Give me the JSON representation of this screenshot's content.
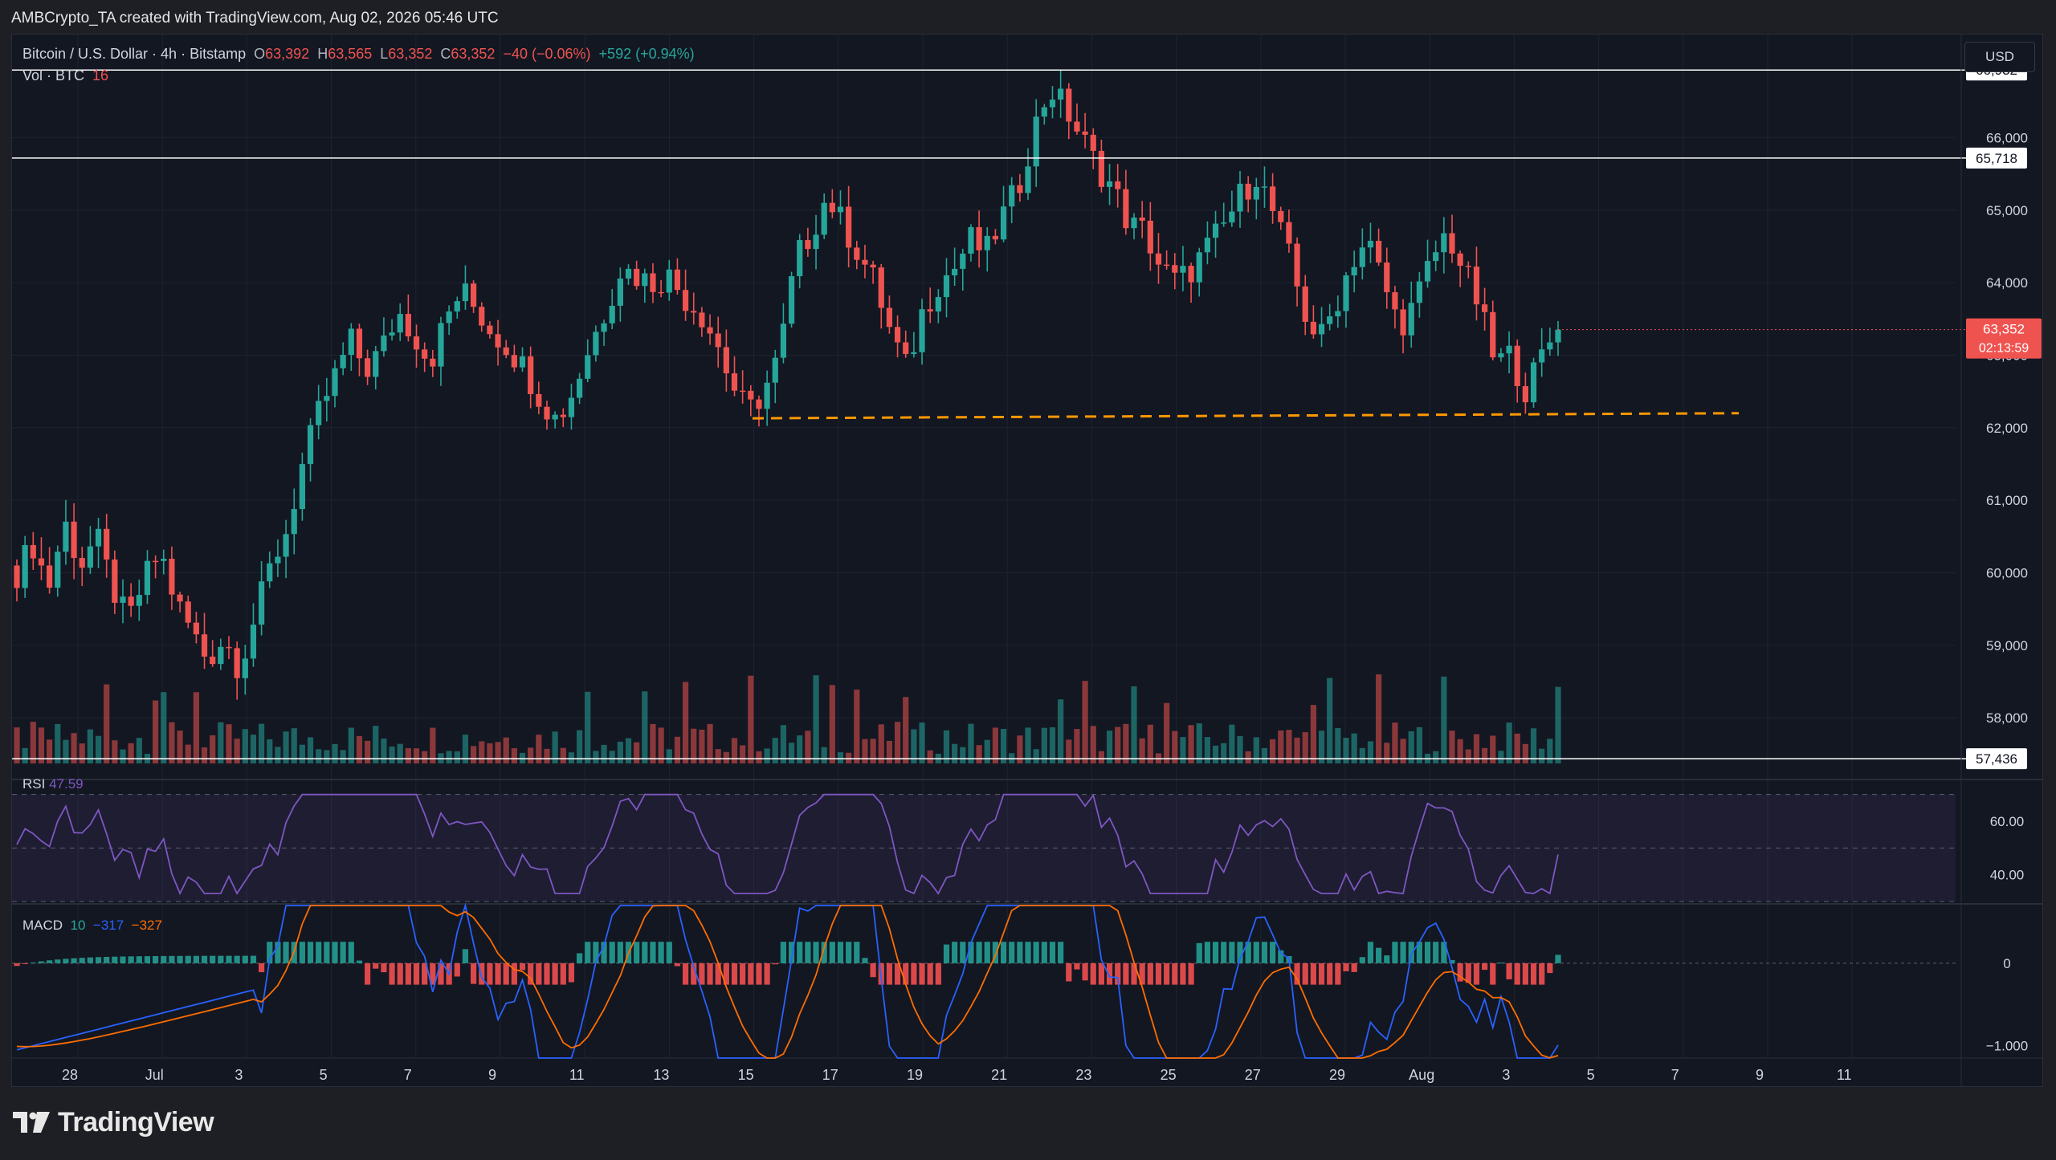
{
  "header": {
    "credit": "AMBCrypto_TA created with TradingView.com, Aug 02, 2026 05:46 UTC"
  },
  "legend": {
    "symbol": "Bitcoin / U.S. Dollar · 4h · Bitstamp",
    "o_label": "O",
    "o": "63,392",
    "h_label": "H",
    "h": "63,565",
    "l_label": "L",
    "l": "63,352",
    "c_label": "C",
    "c": "63,352",
    "change": "−40 (−0.06%)",
    "extra": "+592 (+0.94%)",
    "vol_label": "Vol · BTC",
    "vol": "16"
  },
  "currency_button": "USD",
  "rsi": {
    "label": "RSI",
    "value": "47.59"
  },
  "macd": {
    "label": "MACD",
    "v1": "10",
    "v2": "−317",
    "v3": "−327"
  },
  "footer": {
    "brand": "TradingView",
    "logo_icon": "tradingview-logo-icon"
  },
  "colors": {
    "up": "#26a69a",
    "down": "#ef5350",
    "rsi": "#7e57c2",
    "macd_line": "#2962ff",
    "signal_line": "#ff6d00",
    "support_dash": "#ff9800",
    "hist_up": "#b2dfdb",
    "hist_dn": "#ff5252"
  },
  "chart_data": {
    "type": "candlestick",
    "timeframe": "4h",
    "price_ticks": [
      "66,000",
      "65,000",
      "64,000",
      "63,000",
      "62,000",
      "61,000",
      "60,000",
      "59,000",
      "58,000"
    ],
    "price_range": [
      57150,
      67200
    ],
    "date_ticks": [
      "28",
      "Jul",
      "3",
      "5",
      "7",
      "9",
      "11",
      "13",
      "15",
      "17",
      "19",
      "21",
      "23",
      "25",
      "27",
      "29",
      "Aug",
      "3",
      "5",
      "7",
      "9",
      "11"
    ],
    "horizontal_levels": [
      {
        "label": "66,932",
        "value": 66932
      },
      {
        "label": "65,718",
        "value": 65718
      },
      {
        "label": "57,436",
        "value": 57436
      }
    ],
    "support_line": {
      "style": "dashed",
      "from_date": "Jul 13",
      "to_date": "Aug 6",
      "from_value": 62130,
      "to_value": 62200
    },
    "last_price": {
      "label": "63,352",
      "countdown": "02:13:59",
      "value": 63352
    },
    "candles_close_path": [
      [
        60000,
        60400,
        59800,
        60700,
        60100,
        60500,
        59800,
        59300,
        59900,
        60300,
        59600,
        59200,
        58800,
        59100,
        58700,
        59400,
        60100,
        60600,
        61500,
        62200,
        62700,
        63200,
        62800,
        63100,
        63600,
        63300,
        62900,
        63500,
        63900,
        63600,
        63300,
        63100,
        62800,
        62400,
        62100,
        62500,
        63100,
        63600,
        64200,
        64100,
        64000,
        64100,
        63800,
        63600,
        63200,
        62600,
        62200,
        62500,
        63000,
        64300,
        64700,
        65200,
        64800,
        64400,
        64000,
        63300,
        62800,
        63600,
        64000,
        64200,
        64600,
        64400,
        64900,
        65300,
        66100,
        66700,
        66400,
        66000,
        65600,
        65300,
        64800,
        64700,
        64200,
        64000,
        64200,
        64500,
        64800,
        65200,
        65500,
        65000,
        64400,
        63600,
        63200,
        63700,
        64300,
        64600,
        64000,
        63400,
        63700,
        64300,
        64700,
        64200,
        63700,
        62900,
        63000,
        62500,
        63000,
        63400
      ],
      "reads_close_per_candle_approx"
    ],
    "volume_axis": "Vol · BTC",
    "rsi": {
      "ticks": [
        "60.00",
        "40.00"
      ],
      "range": [
        30,
        75
      ],
      "bands": [
        70,
        50,
        30
      ],
      "last": 47.59
    },
    "macd": {
      "ticks": [
        "0",
        "−1.000"
      ],
      "range": [
        -1150,
        700
      ],
      "macd": 10,
      "signal": -317,
      "hist": -327
    }
  }
}
